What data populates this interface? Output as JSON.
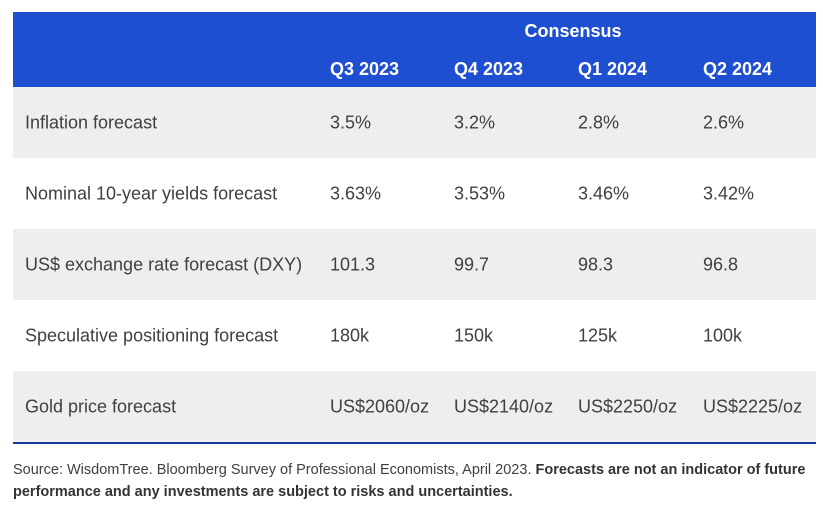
{
  "table": {
    "group_header": "Consensus",
    "columns": [
      "Q3 2023",
      "Q4 2023",
      "Q1 2024",
      "Q2 2024"
    ],
    "rows": [
      {
        "label": "Inflation forecast",
        "values": [
          "3.5%",
          "3.2%",
          "2.8%",
          "2.6%"
        ]
      },
      {
        "label": "Nominal 10-year yields forecast",
        "values": [
          "3.63%",
          "3.53%",
          "3.46%",
          "3.42%"
        ]
      },
      {
        "label": "US$ exchange rate forecast (DXY)",
        "values": [
          "101.3",
          "99.7",
          "98.3",
          "96.8"
        ]
      },
      {
        "label": "Speculative positioning forecast",
        "values": [
          "180k",
          "150k",
          "125k",
          "100k"
        ]
      },
      {
        "label": "Gold price forecast",
        "values": [
          "US$2060/oz",
          "US$2140/oz",
          "US$2250/oz",
          "US$2225/oz"
        ]
      }
    ]
  },
  "footnote": {
    "source_text": "Source: WisdomTree. Bloomberg Survey of Professional Economists, April 2023. ",
    "disclaimer_text": "Forecasts are not an indicator of future performance and any investments are subject to risks and uncertainties."
  },
  "colors": {
    "header_bg": "#1f4fd1",
    "row_shade": "#eeeeee"
  }
}
